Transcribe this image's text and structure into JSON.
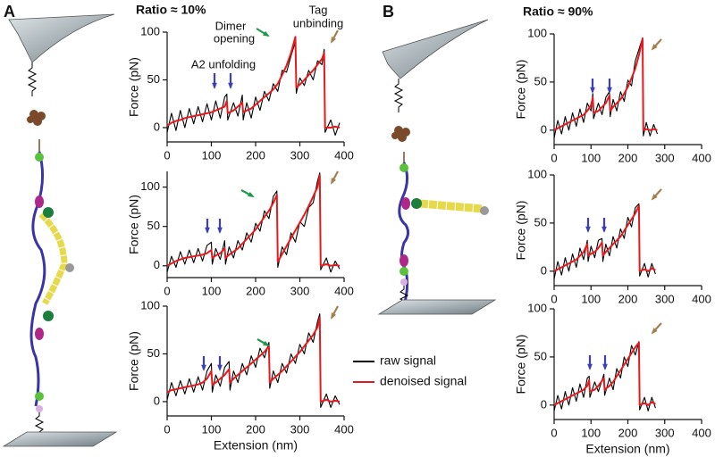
{
  "panels": [
    "A",
    "B"
  ],
  "chart_data": [
    {
      "type": "line",
      "title": "Ratio ≈ 10%",
      "y_label": "Force (pN)",
      "annotations": [
        [
          "Dimer",
          "opening"
        ],
        [
          "Tag",
          "unbinding"
        ],
        [
          "A2 unfolding"
        ]
      ],
      "xlim": [
        0,
        400
      ],
      "xticks": [
        0,
        100,
        200,
        300,
        400
      ],
      "ylim": [
        -15,
        100
      ],
      "yticks": [
        0,
        50,
        100
      ],
      "x": [
        0,
        10,
        20,
        30,
        40,
        50,
        60,
        70,
        80,
        90,
        100,
        110,
        120,
        130,
        135,
        137,
        150,
        160,
        170,
        172,
        180,
        190,
        200,
        210,
        220,
        230,
        240,
        250,
        260,
        270,
        280,
        290,
        292,
        300,
        310,
        320,
        330,
        340,
        350,
        355,
        357,
        370,
        380,
        390
      ],
      "series": [
        {
          "name": "raw signal",
          "color": "#000000",
          "values": [
            -5,
            15,
            -3,
            18,
            0,
            20,
            4,
            22,
            6,
            25,
            8,
            28,
            10,
            32,
            35,
            8,
            26,
            12,
            34,
            8,
            26,
            10,
            32,
            18,
            38,
            28,
            46,
            38,
            60,
            58,
            75,
            90,
            36,
            52,
            44,
            60,
            50,
            70,
            66,
            82,
            -5,
            8,
            -8,
            5
          ]
        },
        {
          "name": "denoised signal",
          "color": "#e8191c",
          "values": [
            2,
            5,
            7,
            8,
            10,
            11,
            12,
            13,
            14,
            15,
            16,
            18,
            20,
            22,
            28,
            15,
            18,
            22,
            26,
            16,
            18,
            20,
            24,
            28,
            32,
            36,
            40,
            46,
            55,
            65,
            78,
            95,
            42,
            45,
            50,
            55,
            60,
            66,
            72,
            78,
            0,
            0,
            1,
            0
          ]
        }
      ]
    },
    {
      "type": "line",
      "y_label": "Force (pN)",
      "xlim": [
        0,
        400
      ],
      "xticks": [
        0,
        100,
        200,
        300,
        400
      ],
      "ylim": [
        -15,
        120
      ],
      "yticks": [
        0,
        50,
        100
      ],
      "x": [
        0,
        10,
        20,
        30,
        40,
        50,
        60,
        70,
        80,
        90,
        100,
        102,
        110,
        120,
        130,
        132,
        140,
        150,
        160,
        170,
        180,
        190,
        200,
        210,
        220,
        230,
        240,
        248,
        250,
        260,
        270,
        280,
        290,
        300,
        310,
        320,
        330,
        340,
        345,
        347,
        360,
        370,
        380,
        390
      ],
      "series": [
        {
          "name": "raw signal",
          "color": "#000000",
          "values": [
            -8,
            12,
            -2,
            18,
            2,
            20,
            4,
            22,
            6,
            26,
            30,
            2,
            22,
            8,
            32,
            2,
            24,
            10,
            32,
            20,
            42,
            30,
            54,
            44,
            70,
            60,
            88,
            95,
            -2,
            24,
            14,
            42,
            30,
            56,
            50,
            74,
            80,
            108,
            118,
            -5,
            10,
            -8,
            6,
            -4
          ]
        },
        {
          "name": "denoised signal",
          "color": "#e8191c",
          "values": [
            0,
            3,
            6,
            8,
            10,
            11,
            12,
            13,
            14,
            16,
            20,
            10,
            13,
            16,
            22,
            10,
            14,
            18,
            22,
            28,
            34,
            40,
            46,
            54,
            62,
            70,
            80,
            90,
            5,
            15,
            25,
            35,
            45,
            55,
            65,
            76,
            88,
            100,
            115,
            0,
            2,
            0,
            1,
            0
          ]
        }
      ]
    },
    {
      "type": "line",
      "y_label": "Force (pN)",
      "x_label": "Extension (nm)",
      "xlim": [
        0,
        400
      ],
      "xticks": [
        0,
        100,
        200,
        300,
        400
      ],
      "ylim": [
        -15,
        100
      ],
      "yticks": [
        0,
        50,
        100
      ],
      "x": [
        0,
        10,
        20,
        30,
        40,
        50,
        60,
        70,
        80,
        90,
        100,
        102,
        110,
        120,
        130,
        140,
        142,
        150,
        160,
        170,
        180,
        190,
        200,
        210,
        220,
        230,
        232,
        240,
        250,
        260,
        270,
        280,
        290,
        300,
        310,
        320,
        330,
        340,
        345,
        347,
        360,
        370,
        380,
        390
      ],
      "series": [
        {
          "name": "raw signal",
          "color": "#000000",
          "values": [
            2,
            20,
            6,
            22,
            8,
            24,
            10,
            26,
            12,
            32,
            40,
            10,
            28,
            16,
            36,
            42,
            12,
            32,
            20,
            40,
            28,
            48,
            36,
            56,
            46,
            62,
            14,
            32,
            20,
            40,
            30,
            50,
            40,
            60,
            50,
            72,
            62,
            84,
            92,
            -6,
            8,
            -6,
            6,
            -3
          ]
        },
        {
          "name": "denoised signal",
          "color": "#e8191c",
          "values": [
            10,
            12,
            13,
            14,
            15,
            16,
            17,
            18,
            20,
            24,
            32,
            18,
            20,
            24,
            28,
            34,
            20,
            24,
            28,
            32,
            36,
            40,
            44,
            48,
            52,
            58,
            20,
            24,
            28,
            32,
            37,
            42,
            47,
            52,
            58,
            64,
            70,
            78,
            88,
            0,
            2,
            0,
            1,
            0
          ]
        }
      ]
    },
    {
      "type": "line",
      "title": "Ratio ≈ 90%",
      "y_label": "Force (pN)",
      "xlim": [
        0,
        400
      ],
      "xticks": [
        0,
        100,
        200,
        300,
        400
      ],
      "ylim": [
        -15,
        100
      ],
      "yticks": [
        0,
        50,
        100
      ],
      "x": [
        0,
        10,
        20,
        30,
        40,
        50,
        60,
        70,
        80,
        90,
        100,
        105,
        107,
        120,
        130,
        140,
        150,
        152,
        160,
        170,
        180,
        190,
        200,
        210,
        220,
        230,
        240,
        242,
        250,
        260,
        270,
        280
      ],
      "series": [
        {
          "name": "raw signal",
          "color": "#000000",
          "values": [
            -8,
            10,
            -4,
            14,
            0,
            18,
            4,
            22,
            8,
            28,
            20,
            38,
            12,
            28,
            16,
            34,
            40,
            14,
            32,
            20,
            40,
            30,
            52,
            46,
            72,
            84,
            96,
            -6,
            8,
            -6,
            6,
            -4
          ]
        },
        {
          "name": "denoised signal",
          "color": "#e8191c",
          "values": [
            0,
            2,
            4,
            6,
            8,
            10,
            12,
            14,
            16,
            20,
            26,
            34,
            18,
            20,
            24,
            28,
            36,
            20,
            24,
            28,
            32,
            38,
            45,
            54,
            64,
            78,
            95,
            0,
            1,
            0,
            1,
            0
          ]
        }
      ]
    },
    {
      "type": "line",
      "y_label": "Force (pN)",
      "xlim": [
        0,
        400
      ],
      "xticks": [
        0,
        100,
        200,
        300,
        400
      ],
      "ylim": [
        -15,
        100
      ],
      "yticks": [
        0,
        50,
        100
      ],
      "x": [
        0,
        10,
        20,
        30,
        40,
        50,
        60,
        70,
        80,
        90,
        92,
        100,
        110,
        120,
        130,
        132,
        140,
        150,
        160,
        170,
        180,
        190,
        200,
        210,
        220,
        230,
        232,
        245,
        255,
        265,
        275
      ],
      "series": [
        {
          "name": "raw signal",
          "color": "#000000",
          "values": [
            -8,
            10,
            -4,
            14,
            0,
            18,
            4,
            24,
            12,
            32,
            10,
            26,
            14,
            32,
            34,
            10,
            28,
            16,
            36,
            24,
            44,
            34,
            56,
            46,
            66,
            70,
            -5,
            8,
            -6,
            8,
            -3
          ]
        },
        {
          "name": "denoised signal",
          "color": "#e8191c",
          "values": [
            0,
            2,
            4,
            6,
            8,
            10,
            12,
            16,
            20,
            28,
            16,
            18,
            20,
            24,
            30,
            16,
            20,
            24,
            28,
            32,
            36,
            42,
            48,
            54,
            60,
            68,
            0,
            2,
            0,
            3,
            1
          ]
        }
      ]
    },
    {
      "type": "line",
      "y_label": "Force (pN)",
      "x_label": "Extension (nm)",
      "xlim": [
        0,
        400
      ],
      "xticks": [
        0,
        100,
        200,
        300,
        400
      ],
      "ylim": [
        -15,
        100
      ],
      "yticks": [
        0,
        50,
        100
      ],
      "x": [
        0,
        10,
        20,
        30,
        40,
        50,
        60,
        70,
        80,
        90,
        95,
        97,
        110,
        120,
        135,
        137,
        150,
        160,
        170,
        180,
        190,
        200,
        210,
        220,
        230,
        232,
        245,
        255,
        265,
        275
      ],
      "series": [
        {
          "name": "raw signal",
          "color": "#000000",
          "values": [
            -6,
            10,
            -4,
            14,
            0,
            18,
            4,
            22,
            8,
            28,
            30,
            8,
            24,
            14,
            32,
            10,
            28,
            16,
            38,
            28,
            50,
            40,
            62,
            52,
            66,
            -5,
            8,
            -6,
            8,
            -3
          ]
        },
        {
          "name": "denoised signal",
          "color": "#e8191c",
          "values": [
            0,
            2,
            4,
            6,
            8,
            10,
            12,
            14,
            16,
            20,
            26,
            14,
            16,
            20,
            28,
            16,
            20,
            24,
            30,
            36,
            42,
            48,
            54,
            60,
            65,
            0,
            2,
            0,
            3,
            1
          ]
        }
      ]
    }
  ]
}
